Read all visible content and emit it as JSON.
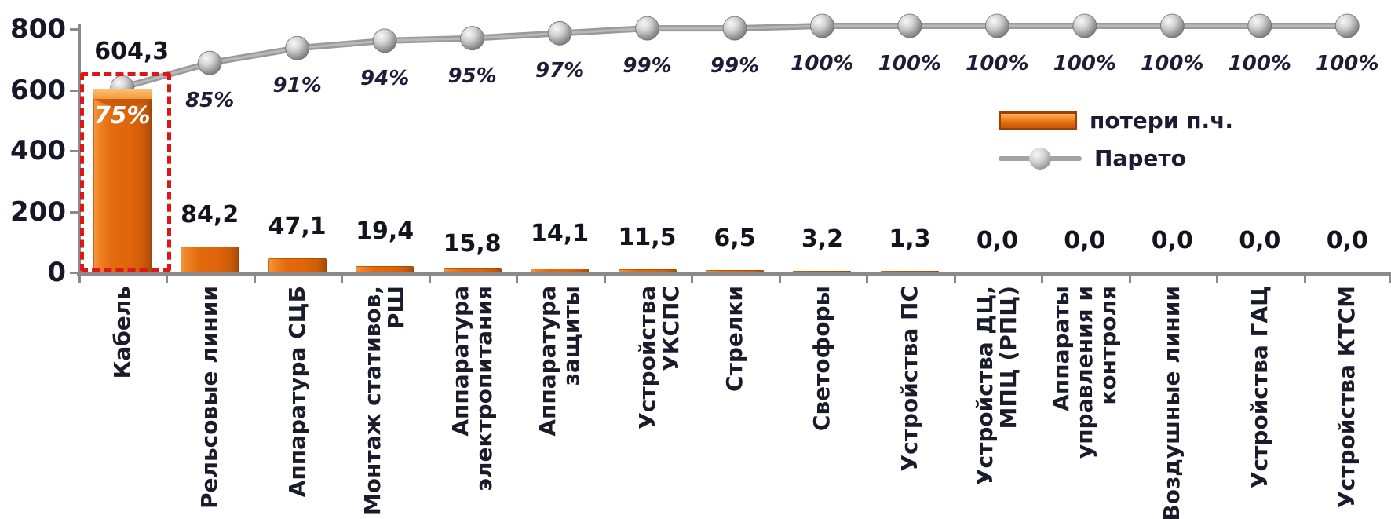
{
  "chart_data": {
    "type": "bar",
    "subtype": "pareto (bar + cumulative line)",
    "title": "",
    "xlabel": "",
    "ylabel": "",
    "ylim": [
      0,
      800
    ],
    "yticks": [
      0,
      200,
      400,
      600,
      800
    ],
    "ytick_labels": [
      "0",
      "200",
      "400",
      "600",
      "800"
    ],
    "grid": false,
    "legend_position": "right-center",
    "categories": [
      "Кабель",
      "Рельсовые линии",
      "Аппаратура СЦБ",
      "Монтаж стативов,\nРШ",
      "Аппаратура\nэлектропитания",
      "Аппаратура\nзащиты",
      "Устройства УКСПС",
      "Стрелки",
      "Светофоры",
      "Устройства ПС",
      "Устройства ДЦ,\nМПЦ (РПЦ)",
      "Аппараты\nуправления и\nконтроля",
      "Воздушные линии",
      "Устройства ГАЦ",
      "Устройства КТСМ"
    ],
    "series": [
      {
        "name": "потери п.ч.",
        "type": "bar",
        "color": "#e3690d",
        "values": [
          604.3,
          84.2,
          47.1,
          19.4,
          15.8,
          14.1,
          11.5,
          6.5,
          3.2,
          1.3,
          0.0,
          0.0,
          0.0,
          0.0,
          0.0
        ],
        "value_labels": [
          "604,3",
          "84,2",
          "47,1",
          "19,4",
          "15,8",
          "14,1",
          "11,5",
          "6,5",
          "3,2",
          "1,3",
          "0,0",
          "0,0",
          "0,0",
          "0,0",
          "0,0"
        ]
      },
      {
        "name": "Парето",
        "type": "line",
        "color": "#a3a3a3",
        "axis": "secondary (0-100%, hidden)",
        "values": [
          75,
          85,
          91,
          94,
          95,
          97,
          99,
          99,
          100,
          100,
          100,
          100,
          100,
          100,
          100
        ],
        "value_labels": [
          "75%",
          "85%",
          "91%",
          "94%",
          "95%",
          "97%",
          "99%",
          "99%",
          "100%",
          "100%",
          "100%",
          "100%",
          "100%",
          "100%",
          "100%"
        ]
      }
    ],
    "annotations": {
      "first_bar_highlight": "red dashed rectangle around first bar",
      "first_point_label_inside_bar": "75%"
    }
  },
  "legend": {
    "items": [
      {
        "label": "потери п.ч.",
        "swatch": "orange-bar"
      },
      {
        "label": "Парето",
        "swatch": "gray-line-with-marker"
      }
    ]
  },
  "colors": {
    "bar_main": "#e3690d",
    "bar_light": "#f7a045",
    "bar_dark": "#a84c07",
    "line": "#a3a3a3",
    "marker": "#9c9c9c",
    "axis": "#8a8a8a",
    "text": "#1a1a2e",
    "highlight_box": "#e11515",
    "inside_label": "#ffffff"
  }
}
